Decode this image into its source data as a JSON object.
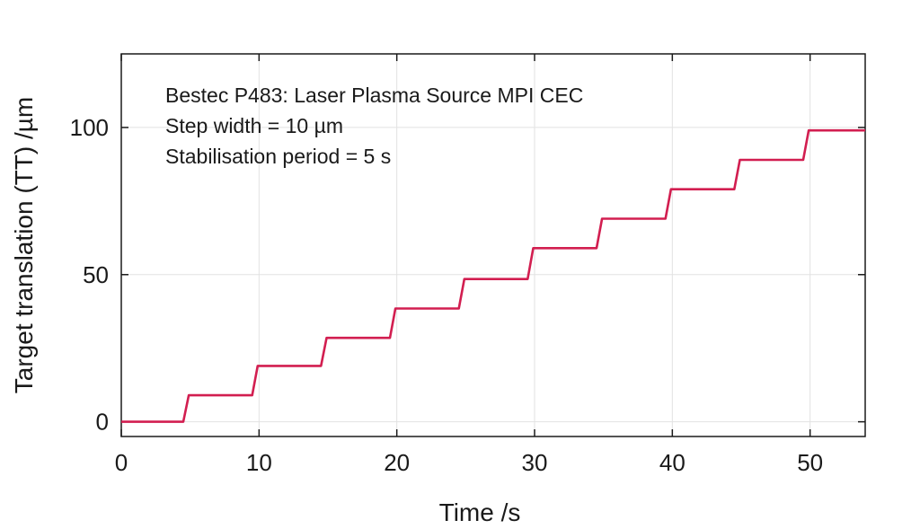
{
  "chart_data": {
    "type": "line",
    "title": "",
    "xlabel": "Time /s",
    "ylabel": "Target translation (TT) /µm",
    "xlim": [
      0,
      54
    ],
    "ylim": [
      -5,
      125
    ],
    "grid": true,
    "x_ticks": [
      0,
      10,
      20,
      30,
      40,
      50
    ],
    "y_ticks": [
      0,
      50,
      100
    ],
    "annotations": [
      "Bestec P483: Laser Plasma Source MPI CEC",
      "Step width = 10 µm",
      "Stabilisation period = 5 s"
    ],
    "series": [
      {
        "name": "Target translation",
        "color": "#d21e50",
        "x": [
          0,
          4.5,
          4.9,
          9.5,
          9.9,
          14.5,
          14.9,
          19.5,
          19.9,
          24.5,
          24.9,
          29.5,
          29.9,
          34.5,
          34.9,
          39.5,
          39.9,
          44.5,
          44.9,
          49.5,
          49.9,
          54
        ],
        "y": [
          0,
          0,
          9,
          9,
          19,
          19,
          28.5,
          28.5,
          38.5,
          38.5,
          48.5,
          48.5,
          59,
          59,
          69,
          69,
          79,
          79,
          89,
          89,
          99,
          99
        ]
      }
    ]
  }
}
